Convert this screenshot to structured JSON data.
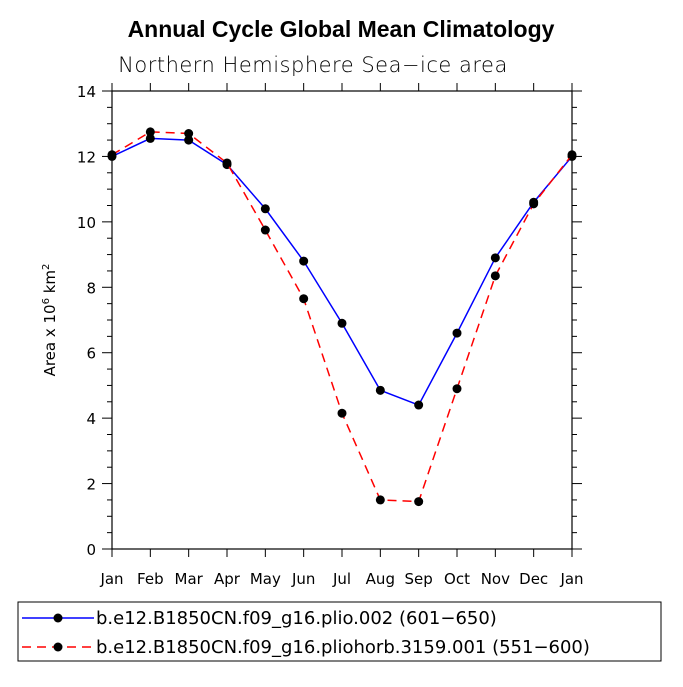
{
  "chart_data": {
    "type": "line",
    "title": "Annual Cycle Global Mean Climatology",
    "subtitle": "Northern Hemisphere Sea−ice area",
    "ylabel_prefix": "Area x 10",
    "ylabel_exp": "6",
    "ylabel_unit": " km",
    "ylabel_unit_exp": "2",
    "xlabel": "",
    "categories": [
      "Jan",
      "Feb",
      "Mar",
      "Apr",
      "May",
      "Jun",
      "Jul",
      "Aug",
      "Sep",
      "Oct",
      "Nov",
      "Dec",
      "Jan"
    ],
    "ylim": [
      0,
      14
    ],
    "yticks": [
      0,
      2,
      4,
      6,
      8,
      10,
      12,
      14
    ],
    "grid": false,
    "legend_position": "bottom",
    "series": [
      {
        "name": "b.e12.B1850CN.f09_g16.plio.002 (601−650)",
        "color": "#0000ff",
        "dash": "solid",
        "values": [
          12.0,
          12.55,
          12.5,
          11.75,
          10.4,
          8.8,
          6.9,
          4.85,
          4.4,
          6.6,
          8.9,
          10.6,
          12.0
        ]
      },
      {
        "name": "b.e12.B1850CN.f09_g16.pliohorb.3159.001 (551−600)",
        "color": "#ff0000",
        "dash": "dashed",
        "values": [
          12.05,
          12.75,
          12.7,
          11.8,
          9.75,
          7.65,
          4.15,
          1.5,
          1.45,
          4.9,
          8.35,
          10.55,
          12.05
        ]
      }
    ]
  }
}
